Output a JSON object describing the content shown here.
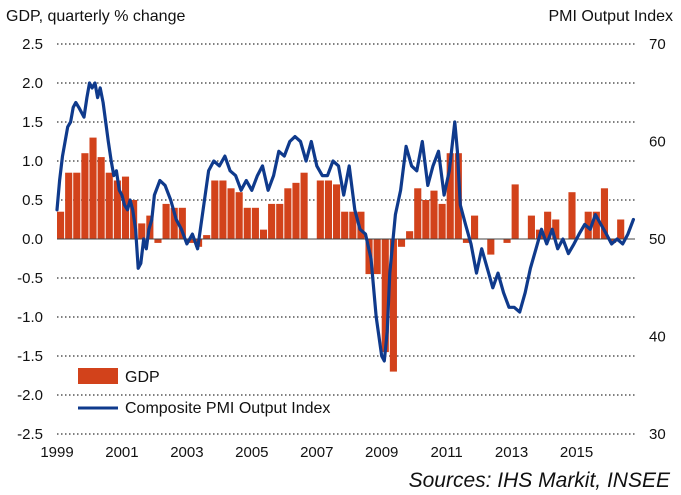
{
  "chart_data": {
    "type": "bar+line",
    "title": "",
    "left_axis_title": "GDP, quarterly % change",
    "right_axis_title": "PMI Output  Index",
    "left_ylim": [
      -2.5,
      2.5
    ],
    "left_ticks": [
      "2.5",
      "2.0",
      "1.5",
      "1.0",
      "0.5",
      "0.0",
      "-0.5",
      "-1.0",
      "-1.5",
      "-2.0",
      "-2.5"
    ],
    "right_ylim": [
      30,
      70
    ],
    "right_ticks": [
      "70",
      "60",
      "50",
      "40",
      "30"
    ],
    "xlim": [
      1999.0,
      2016.8
    ],
    "x_ticks": [
      "1999",
      "2001",
      "2003",
      "2005",
      "2007",
      "2009",
      "2011",
      "2013",
      "2015"
    ],
    "colors": {
      "gdp": "#d2421b",
      "pmi": "#0f3a8c",
      "grid": "#000000"
    },
    "legend": [
      {
        "name": "GDP",
        "kind": "bar"
      },
      {
        "name": "Composite PMI Output Index",
        "kind": "line"
      }
    ],
    "source_note": "Sources: IHS Markit, INSEE",
    "series": [
      {
        "name": "GDP",
        "kind": "bar",
        "axis": "left",
        "start": 1999.0,
        "step": 0.25,
        "values": [
          0.35,
          0.85,
          0.85,
          1.1,
          1.3,
          1.05,
          0.85,
          0.75,
          0.8,
          0.5,
          0.2,
          0.3,
          -0.05,
          0.45,
          0.4,
          0.4,
          -0.05,
          -0.1,
          0.05,
          0.75,
          0.75,
          0.65,
          0.6,
          0.4,
          0.4,
          0.12,
          0.45,
          0.45,
          0.65,
          0.72,
          0.85,
          0.0,
          0.75,
          0.75,
          0.7,
          0.35,
          0.35,
          0.35,
          -0.45,
          -0.45,
          -1.45,
          -1.7,
          -0.1,
          0.1,
          0.65,
          0.5,
          0.62,
          0.45,
          1.1,
          1.1,
          -0.05,
          0.3,
          0.0,
          -0.2,
          0.0,
          -0.05,
          0.7,
          0.0,
          0.3,
          0.12,
          0.35,
          0.25,
          0.0,
          0.6,
          0.0,
          0.35,
          0.35,
          0.65,
          -0.05,
          0.25
        ]
      },
      {
        "name": "Composite PMI Output Index",
        "kind": "line",
        "axis": "right",
        "x": [
          1999.0,
          1999.08,
          1999.17,
          1999.25,
          1999.33,
          1999.42,
          1999.5,
          1999.58,
          1999.67,
          1999.75,
          1999.83,
          1999.92,
          2000.0,
          2000.08,
          2000.17,
          2000.25,
          2000.33,
          2000.42,
          2000.5,
          2000.58,
          2000.67,
          2000.75,
          2000.83,
          2000.92,
          2001.0,
          2001.08,
          2001.17,
          2001.25,
          2001.33,
          2001.42,
          2001.5,
          2001.58,
          2001.67,
          2001.75,
          2001.83,
          2001.92,
          2002.0,
          2002.17,
          2002.33,
          2002.5,
          2002.67,
          2002.83,
          2003.0,
          2003.17,
          2003.33,
          2003.5,
          2003.67,
          2003.83,
          2004.0,
          2004.17,
          2004.33,
          2004.5,
          2004.67,
          2004.83,
          2005.0,
          2005.17,
          2005.33,
          2005.5,
          2005.67,
          2005.83,
          2006.0,
          2006.17,
          2006.33,
          2006.5,
          2006.67,
          2006.83,
          2007.0,
          2007.17,
          2007.33,
          2007.5,
          2007.67,
          2007.83,
          2008.0,
          2008.17,
          2008.33,
          2008.5,
          2008.67,
          2008.83,
          2009.0,
          2009.08,
          2009.17,
          2009.25,
          2009.42,
          2009.58,
          2009.75,
          2009.92,
          2010.08,
          2010.25,
          2010.42,
          2010.58,
          2010.75,
          2010.92,
          2011.08,
          2011.25,
          2011.33,
          2011.42,
          2011.58,
          2011.75,
          2011.92,
          2012.08,
          2012.25,
          2012.42,
          2012.58,
          2012.75,
          2012.92,
          2013.08,
          2013.25,
          2013.42,
          2013.58,
          2013.75,
          2013.92,
          2014.08,
          2014.25,
          2014.42,
          2014.58,
          2014.75,
          2014.92,
          2015.08,
          2015.25,
          2015.42,
          2015.58,
          2015.75,
          2015.92,
          2016.08,
          2016.25,
          2016.42,
          2016.58,
          2016.75
        ],
        "values": [
          53.0,
          56.0,
          58.5,
          60.0,
          61.5,
          62.0,
          63.5,
          64.0,
          63.5,
          63.0,
          62.5,
          64.5,
          66.0,
          65.5,
          66.0,
          64.5,
          65.5,
          64.0,
          62.0,
          60.0,
          58.0,
          56.5,
          57.0,
          55.0,
          54.5,
          53.5,
          53.0,
          54.0,
          53.0,
          51.0,
          47.0,
          47.5,
          50.0,
          49.0,
          51.0,
          52.0,
          54.5,
          56.0,
          55.5,
          54.0,
          52.0,
          51.0,
          49.5,
          50.5,
          49.0,
          53.0,
          57.0,
          58.0,
          57.5,
          58.5,
          57.0,
          56.5,
          55.0,
          56.0,
          55.0,
          56.5,
          57.5,
          55.0,
          56.5,
          59.0,
          58.5,
          60.0,
          60.5,
          60.0,
          58.0,
          60.0,
          57.5,
          56.5,
          56.5,
          58.0,
          57.5,
          54.5,
          57.5,
          53.0,
          51.0,
          50.5,
          48.0,
          42.0,
          38.0,
          37.5,
          40.5,
          46.5,
          52.5,
          55.0,
          59.5,
          57.5,
          57.0,
          60.0,
          55.5,
          57.5,
          59.0,
          54.5,
          57.0,
          62.0,
          59.0,
          53.5,
          51.5,
          49.5,
          46.5,
          49.0,
          47.0,
          45.0,
          46.5,
          44.5,
          43.0,
          43.0,
          42.5,
          44.5,
          47.0,
          49.0,
          51.0,
          49.5,
          51.0,
          49.0,
          50.0,
          48.5,
          49.5,
          50.5,
          51.5,
          51.0,
          52.5,
          51.5,
          50.5,
          49.5,
          50.0,
          49.5,
          50.5,
          52.0
        ]
      }
    ]
  }
}
